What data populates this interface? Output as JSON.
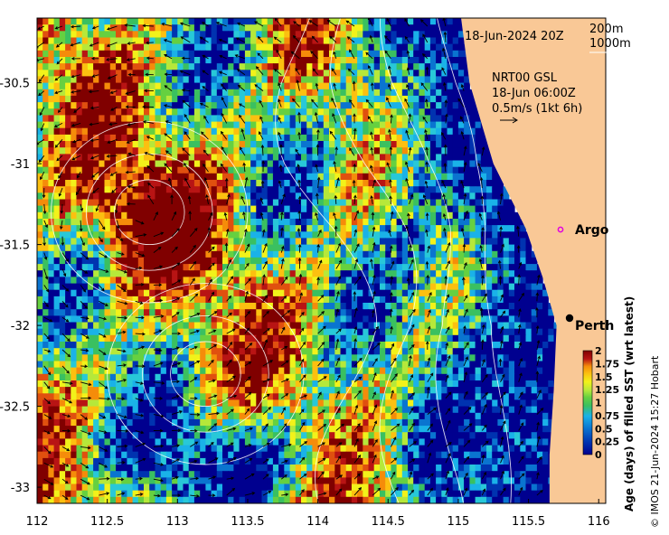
{
  "chart_data": {
    "type": "heatmap",
    "title": "",
    "xlabel": "",
    "ylabel": "",
    "xlim": [
      112,
      116.05
    ],
    "ylim": [
      -33.1,
      -30.1
    ],
    "x_ticks": [
      "112",
      "112.5",
      "113",
      "113.5",
      "114",
      "114.5",
      "115",
      "115.5",
      "116"
    ],
    "y_ticks": [
      "-30.5",
      "-31",
      "-31.5",
      "-32",
      "-32.5",
      "-33"
    ],
    "colorbar": {
      "label": "Age (days) of filled SST (wrt latest)",
      "ticks": [
        "2",
        "1.75",
        "1.5",
        "1.25",
        "1",
        "0.75",
        "0.5",
        "0.25",
        "0"
      ],
      "range": [
        0,
        2
      ]
    },
    "annotations": {
      "date": "18-Jun-2024 20Z",
      "depth_1": "200m",
      "depth_2": "1000m",
      "current_source": "NRT00 GSL",
      "current_time": "18-Jun 06:00Z",
      "current_scale": "0.5m/s (1kt 6h)"
    },
    "places": [
      {
        "name": "Argo",
        "lon": 115.85,
        "lat": -31.45
      },
      {
        "name": "Perth",
        "lon": 115.86,
        "lat": -31.95
      }
    ],
    "credit": "© IMOS 21-Jun-2024 15:27 Hobart"
  },
  "colors": {
    "land": "#f9c896",
    "palette": [
      "#00008f",
      "#0033b0",
      "#0a74d0",
      "#1ab2e8",
      "#28c8d8",
      "#3ac060",
      "#66d040",
      "#b6e83a",
      "#f2f21a",
      "#fcc010",
      "#f58c0a",
      "#e0500f",
      "#b81414",
      "#800000"
    ]
  }
}
